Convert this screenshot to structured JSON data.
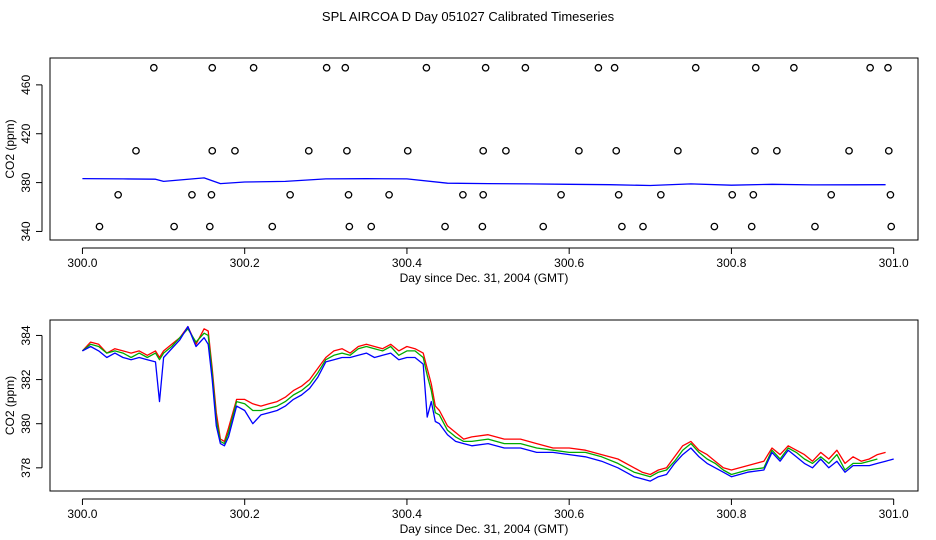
{
  "figure": {
    "title": "SPL AIRCOA D  Day 051027  Calibrated Timeseries"
  },
  "chart_data": [
    {
      "type": "scatter",
      "xlabel": "Day since Dec. 31, 2004 (GMT)",
      "ylabel": "CO2 (ppm)",
      "xlim": [
        299.96,
        301.03
      ],
      "ylim": [
        333,
        482
      ],
      "xticks": [
        "300.0",
        "300.2",
        "300.4",
        "300.6",
        "300.8",
        "301.0"
      ],
      "xtick_values": [
        300.0,
        300.2,
        300.4,
        300.6,
        300.8,
        301.0
      ],
      "yticks": [
        "340",
        "380",
        "420",
        "460"
      ],
      "ytick_values": [
        340,
        380,
        420,
        460
      ],
      "grid": false,
      "points": {
        "name": "",
        "marker": "open-circle",
        "color": "#000000",
        "x": [
          300.088,
          300.16,
          300.211,
          300.301,
          300.324,
          300.424,
          300.497,
          300.546,
          300.636,
          300.656,
          300.756,
          300.83,
          300.877,
          300.971,
          300.993,
          300.066,
          300.16,
          300.188,
          300.279,
          300.326,
          300.401,
          300.494,
          300.522,
          300.612,
          300.658,
          300.734,
          300.829,
          300.856,
          300.945,
          300.994,
          300.044,
          300.135,
          300.159,
          300.256,
          300.328,
          300.378,
          300.469,
          300.494,
          300.59,
          300.661,
          300.713,
          300.801,
          300.827,
          300.923,
          300.996,
          300.021,
          300.113,
          300.157,
          300.234,
          300.329,
          300.356,
          300.447,
          300.493,
          300.568,
          300.665,
          300.691,
          300.779,
          300.825,
          300.903,
          300.997
        ],
        "y": [
          474,
          474,
          474,
          474,
          474,
          474,
          474,
          474,
          474,
          474,
          474,
          474,
          474,
          474,
          474,
          406,
          406,
          406,
          406,
          406,
          406,
          406,
          406,
          406,
          406,
          406,
          406,
          406,
          406,
          406,
          370,
          370,
          370,
          370,
          370,
          370,
          370,
          370,
          370,
          370,
          370,
          370,
          370,
          370,
          370,
          344,
          344,
          344,
          344,
          344,
          344,
          344,
          344,
          344,
          344,
          344,
          344,
          344,
          344,
          344
        ]
      },
      "series": [
        {
          "name": "",
          "color": "#0000ff",
          "x": [
            300.0,
            300.05,
            300.09,
            300.1,
            300.15,
            300.17,
            300.2,
            300.25,
            300.3,
            300.35,
            300.4,
            300.45,
            300.5,
            300.55,
            300.6,
            300.65,
            300.7,
            300.75,
            300.8,
            300.85,
            300.9,
            300.95,
            300.99
          ],
          "y": [
            383.3,
            383.0,
            382.8,
            381.0,
            383.8,
            379.2,
            380.5,
            381.0,
            383.0,
            383.2,
            383.0,
            379.5,
            379.2,
            378.9,
            378.6,
            378.3,
            377.6,
            378.9,
            377.9,
            378.6,
            378.1,
            378.2,
            378.3
          ]
        }
      ]
    },
    {
      "type": "line",
      "xlabel": "Day since Dec. 31, 2004 (GMT)",
      "ylabel": "CO2 (ppm)",
      "xlim": [
        299.96,
        301.03
      ],
      "ylim": [
        376.95,
        384.7
      ],
      "xticks": [
        "300.0",
        "300.2",
        "300.4",
        "300.6",
        "300.8",
        "301.0"
      ],
      "xtick_values": [
        300.0,
        300.2,
        300.4,
        300.6,
        300.8,
        301.0
      ],
      "yticks": [
        "378",
        "380",
        "382",
        "384"
      ],
      "ytick_values": [
        378,
        380,
        382,
        384
      ],
      "grid": false,
      "series": [
        {
          "name": "",
          "color": "#ff0000",
          "x": [
            300.0,
            300.01,
            300.02,
            300.03,
            300.04,
            300.05,
            300.06,
            300.07,
            300.08,
            300.09,
            300.095,
            300.1,
            300.11,
            300.12,
            300.13,
            300.14,
            300.15,
            300.155,
            300.16,
            300.165,
            300.17,
            300.175,
            300.18,
            300.19,
            300.2,
            300.21,
            300.22,
            300.23,
            300.24,
            300.25,
            300.26,
            300.27,
            300.28,
            300.29,
            300.3,
            300.31,
            300.32,
            300.33,
            300.34,
            300.35,
            300.36,
            300.37,
            300.38,
            300.39,
            300.4,
            300.41,
            300.42,
            300.425,
            300.43,
            300.435,
            300.44,
            300.45,
            300.46,
            300.47,
            300.48,
            300.5,
            300.52,
            300.54,
            300.56,
            300.58,
            300.6,
            300.62,
            300.64,
            300.66,
            300.68,
            300.69,
            300.7,
            300.71,
            300.72,
            300.73,
            300.74,
            300.75,
            300.76,
            300.77,
            300.78,
            300.79,
            300.8,
            300.82,
            300.84,
            300.85,
            300.86,
            300.87,
            300.88,
            300.89,
            300.9,
            300.91,
            300.92,
            300.93,
            300.94,
            300.95,
            300.96,
            300.97,
            300.98,
            300.99
          ],
          "y": [
            383.3,
            383.7,
            383.6,
            383.2,
            383.4,
            383.3,
            383.2,
            383.3,
            383.1,
            383.3,
            383.0,
            383.3,
            383.6,
            383.9,
            384.4,
            383.6,
            384.3,
            384.2,
            382.5,
            380.5,
            379.3,
            379.2,
            379.8,
            381.1,
            381.1,
            380.9,
            380.8,
            380.9,
            381.0,
            381.2,
            381.5,
            381.7,
            382.0,
            382.5,
            383.0,
            383.3,
            383.4,
            383.2,
            383.5,
            383.6,
            383.5,
            383.4,
            383.6,
            383.3,
            383.5,
            383.4,
            383.2,
            382.5,
            381.8,
            380.8,
            380.6,
            379.9,
            379.6,
            379.3,
            379.4,
            379.5,
            379.3,
            379.3,
            379.1,
            378.9,
            378.9,
            378.8,
            378.6,
            378.4,
            378.0,
            377.8,
            377.7,
            377.9,
            378.0,
            378.5,
            379.0,
            379.2,
            378.8,
            378.6,
            378.3,
            378.0,
            377.9,
            378.1,
            378.3,
            378.9,
            378.6,
            379.0,
            378.8,
            378.6,
            378.3,
            378.7,
            378.4,
            378.8,
            378.2,
            378.5,
            378.3,
            378.4,
            378.6,
            378.7
          ]
        },
        {
          "name": "",
          "color": "#00aa00",
          "x": [
            300.0,
            300.01,
            300.02,
            300.03,
            300.04,
            300.05,
            300.06,
            300.07,
            300.08,
            300.09,
            300.095,
            300.1,
            300.11,
            300.12,
            300.13,
            300.14,
            300.15,
            300.155,
            300.16,
            300.165,
            300.17,
            300.175,
            300.18,
            300.19,
            300.2,
            300.21,
            300.22,
            300.23,
            300.24,
            300.25,
            300.26,
            300.27,
            300.28,
            300.29,
            300.3,
            300.31,
            300.32,
            300.33,
            300.34,
            300.35,
            300.36,
            300.37,
            300.38,
            300.39,
            300.4,
            300.41,
            300.42,
            300.425,
            300.43,
            300.435,
            300.44,
            300.45,
            300.46,
            300.47,
            300.48,
            300.5,
            300.52,
            300.54,
            300.56,
            300.58,
            300.6,
            300.62,
            300.64,
            300.66,
            300.68,
            300.69,
            300.7,
            300.71,
            300.72,
            300.73,
            300.74,
            300.75,
            300.76,
            300.77,
            300.78,
            300.79,
            300.8,
            300.82,
            300.84,
            300.85,
            300.86,
            300.87,
            300.88,
            300.89,
            300.9,
            300.91,
            300.92,
            300.93,
            300.94,
            300.95,
            300.96,
            300.97,
            300.98
          ],
          "y": [
            383.3,
            383.6,
            383.5,
            383.2,
            383.3,
            383.2,
            383.0,
            383.2,
            383.0,
            383.2,
            382.9,
            383.2,
            383.5,
            383.9,
            384.3,
            383.7,
            384.1,
            384.0,
            382.3,
            380.2,
            379.2,
            379.1,
            379.6,
            381.0,
            380.9,
            380.6,
            380.6,
            380.7,
            380.8,
            381.0,
            381.3,
            381.5,
            381.8,
            382.3,
            382.9,
            383.1,
            383.2,
            383.1,
            383.4,
            383.5,
            383.4,
            383.3,
            383.5,
            383.1,
            383.3,
            383.3,
            383.0,
            382.2,
            381.5,
            380.5,
            380.4,
            379.7,
            379.4,
            379.2,
            379.2,
            379.3,
            379.1,
            379.1,
            378.9,
            378.8,
            378.7,
            378.7,
            378.5,
            378.2,
            377.8,
            377.7,
            377.6,
            377.8,
            377.9,
            378.3,
            378.8,
            379.1,
            378.7,
            378.4,
            378.2,
            377.9,
            377.7,
            377.9,
            378.0,
            378.8,
            378.4,
            378.9,
            378.7,
            378.4,
            378.2,
            378.5,
            378.2,
            378.6,
            377.9,
            378.2,
            378.2,
            378.3,
            378.4
          ]
        },
        {
          "name": "",
          "color": "#0000ff",
          "x": [
            300.0,
            300.01,
            300.02,
            300.03,
            300.04,
            300.05,
            300.06,
            300.07,
            300.08,
            300.09,
            300.095,
            300.1,
            300.11,
            300.12,
            300.13,
            300.14,
            300.15,
            300.155,
            300.16,
            300.165,
            300.17,
            300.175,
            300.18,
            300.19,
            300.2,
            300.21,
            300.22,
            300.23,
            300.24,
            300.25,
            300.26,
            300.27,
            300.28,
            300.29,
            300.3,
            300.31,
            300.32,
            300.33,
            300.34,
            300.35,
            300.36,
            300.37,
            300.38,
            300.39,
            300.4,
            300.41,
            300.42,
            300.425,
            300.43,
            300.435,
            300.44,
            300.45,
            300.46,
            300.47,
            300.48,
            300.5,
            300.52,
            300.54,
            300.56,
            300.58,
            300.6,
            300.62,
            300.64,
            300.66,
            300.68,
            300.69,
            300.7,
            300.71,
            300.72,
            300.73,
            300.74,
            300.75,
            300.76,
            300.77,
            300.78,
            300.79,
            300.8,
            300.82,
            300.84,
            300.85,
            300.86,
            300.87,
            300.88,
            300.89,
            300.9,
            300.91,
            300.92,
            300.93,
            300.94,
            300.95,
            300.96,
            300.97,
            300.98,
            300.99,
            301.0
          ],
          "y": [
            383.3,
            383.5,
            383.3,
            383.0,
            383.2,
            383.0,
            382.9,
            383.0,
            382.9,
            382.8,
            381.0,
            383.0,
            383.4,
            383.8,
            384.4,
            383.5,
            383.9,
            383.6,
            382.0,
            379.9,
            379.1,
            379.0,
            379.4,
            380.8,
            380.6,
            380.0,
            380.4,
            380.5,
            380.6,
            380.8,
            381.1,
            381.3,
            381.6,
            382.1,
            382.8,
            382.9,
            383.0,
            383.0,
            383.1,
            383.2,
            383.0,
            383.1,
            383.2,
            382.9,
            383.0,
            383.0,
            382.7,
            380.3,
            381.0,
            380.1,
            380.0,
            379.5,
            379.2,
            379.1,
            379.0,
            379.1,
            378.9,
            378.9,
            378.7,
            378.7,
            378.6,
            378.5,
            378.3,
            378.0,
            377.6,
            377.5,
            377.4,
            377.6,
            377.7,
            378.2,
            378.6,
            378.9,
            378.5,
            378.2,
            378.0,
            377.8,
            377.6,
            377.8,
            377.9,
            378.7,
            378.3,
            378.8,
            378.5,
            378.2,
            378.0,
            378.4,
            378.0,
            378.3,
            377.8,
            378.1,
            378.1,
            378.1,
            378.2,
            378.3,
            378.4
          ]
        }
      ]
    }
  ]
}
